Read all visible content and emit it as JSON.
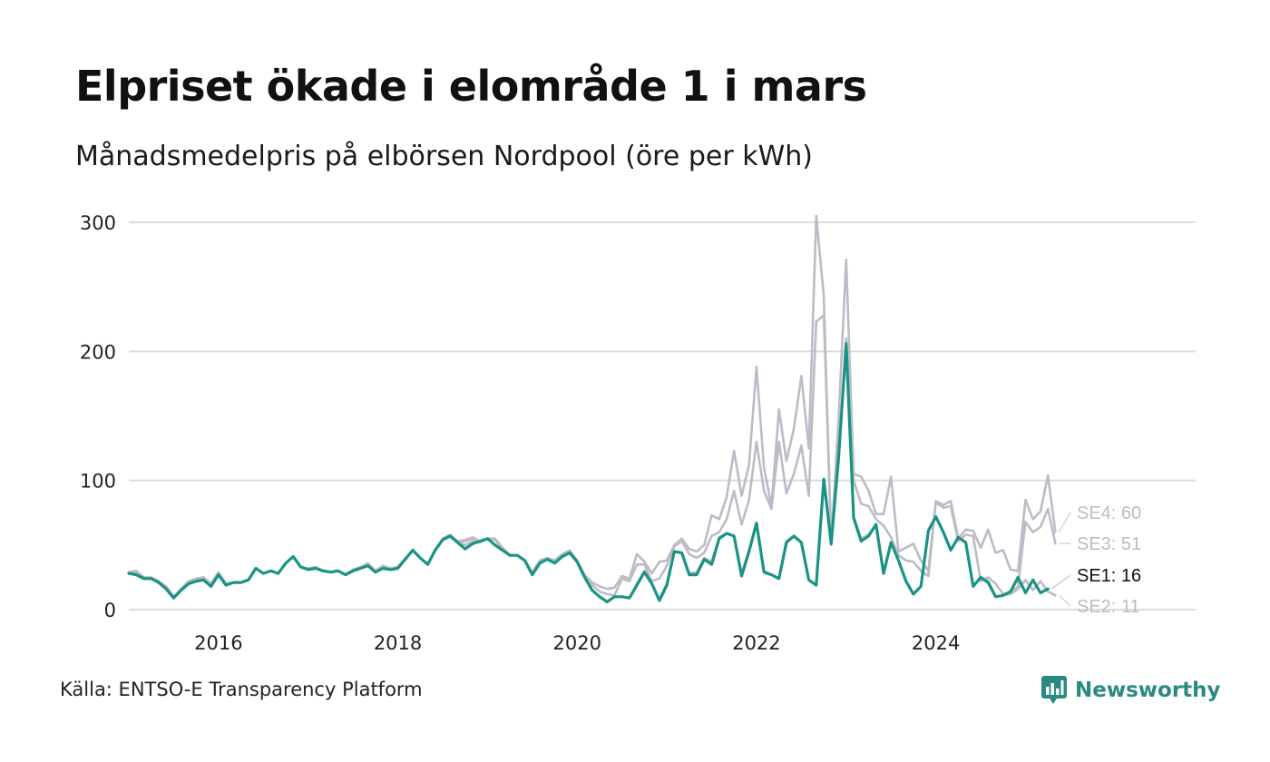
{
  "title": "Elpriset ökade i elområde 1 i mars",
  "subtitle": "Månadsmedelpris på elbörsen Nordpool (öre per kWh)",
  "source": "Källa: ENTSO-E Transparency Platform",
  "brand": "Newsworthy",
  "colors": {
    "highlight": "#1a9384",
    "muted": "#bcbbc7",
    "grid": "#dcdcdc",
    "brand": "#2a8a82"
  },
  "chart_data": {
    "type": "line",
    "title": "Elpriset ökade i elområde 1 i mars",
    "subtitle": "Månadsmedelpris på elbörsen Nordpool (öre per kWh)",
    "x_start": "2015-01",
    "x_ticks": [
      2016,
      2018,
      2020,
      2022,
      2024
    ],
    "y_ticks": [
      0,
      100,
      200,
      300
    ],
    "ylim": [
      0,
      300
    ],
    "grid": true,
    "series": [
      {
        "name": "SE4",
        "end_label": "SE4: 60",
        "color": "#bcbbc7",
        "values": [
          29,
          30,
          25,
          25,
          22,
          18,
          10,
          16,
          22,
          24,
          25,
          20,
          29,
          20,
          21,
          21,
          23,
          32,
          28,
          30,
          28,
          36,
          41,
          33,
          32,
          33,
          30,
          29,
          30,
          27,
          31,
          33,
          36,
          30,
          34,
          32,
          33,
          40,
          46,
          40,
          35,
          46,
          55,
          58,
          53,
          54,
          56,
          53,
          55,
          55,
          48,
          42,
          42,
          38,
          29,
          38,
          40,
          38,
          43,
          46,
          38,
          27,
          21,
          18,
          16,
          17,
          26,
          24,
          43,
          37,
          28,
          37,
          38,
          50,
          55,
          47,
          45,
          50,
          73,
          70,
          87,
          123,
          88,
          112,
          188,
          110,
          80,
          155,
          115,
          140,
          181,
          125,
          305,
          243,
          50,
          150,
          271,
          105,
          103,
          92,
          74,
          74,
          103,
          45,
          48,
          51,
          38,
          30,
          84,
          81,
          84,
          55,
          62,
          61,
          48,
          62,
          44,
          46,
          31,
          30,
          85,
          70,
          76,
          104,
          60
        ]
      },
      {
        "name": "SE3",
        "end_label": "SE3: 51",
        "color": "#bcbbc7",
        "values": [
          29,
          29,
          24,
          24,
          21,
          17,
          9,
          15,
          21,
          23,
          24,
          19,
          27,
          19,
          21,
          21,
          23,
          32,
          28,
          30,
          28,
          36,
          41,
          33,
          31,
          32,
          30,
          29,
          30,
          27,
          30,
          32,
          34,
          29,
          33,
          31,
          32,
          39,
          46,
          40,
          35,
          46,
          54,
          57,
          52,
          53,
          55,
          52,
          55,
          54,
          47,
          42,
          42,
          38,
          27,
          37,
          40,
          37,
          42,
          45,
          37,
          26,
          19,
          14,
          12,
          11,
          24,
          22,
          35,
          35,
          22,
          24,
          34,
          49,
          53,
          43,
          40,
          44,
          57,
          60,
          70,
          92,
          66,
          85,
          130,
          92,
          78,
          130,
          90,
          105,
          127,
          88,
          223,
          228,
          55,
          115,
          210,
          100,
          82,
          80,
          70,
          65,
          56,
          42,
          38,
          37,
          30,
          26,
          83,
          79,
          80,
          53,
          58,
          57,
          22,
          25,
          20,
          12,
          13,
          18,
          68,
          60,
          64,
          78,
          51
        ]
      },
      {
        "name": "SE2",
        "end_label": "SE2: 11",
        "color": "#bcbbc7",
        "values": [
          28,
          27,
          24,
          24,
          21,
          16,
          9,
          15,
          20,
          22,
          23,
          18,
          27,
          19,
          21,
          21,
          23,
          32,
          28,
          30,
          28,
          36,
          41,
          33,
          31,
          32,
          30,
          29,
          30,
          27,
          30,
          32,
          34,
          29,
          32,
          31,
          32,
          39,
          46,
          40,
          35,
          46,
          54,
          57,
          52,
          50,
          53,
          52,
          55,
          50,
          46,
          42,
          42,
          38,
          27,
          36,
          39,
          36,
          41,
          44,
          37,
          25,
          15,
          10,
          6,
          10,
          10,
          9,
          20,
          30,
          20,
          8,
          20,
          45,
          44,
          28,
          29,
          40,
          37,
          56,
          59,
          57,
          28,
          46,
          67,
          30,
          27,
          24,
          53,
          57,
          52,
          23,
          19,
          100,
          50,
          120,
          205,
          72,
          55,
          58,
          66,
          28,
          52,
          38,
          22,
          12,
          18,
          62,
          72,
          60,
          46,
          56,
          52,
          18,
          25,
          22,
          10,
          11,
          12,
          16,
          23,
          15,
          22,
          14,
          11
        ]
      },
      {
        "name": "SE1",
        "end_label": "SE1: 16",
        "color": "#1a9384",
        "highlight": true,
        "values": [
          28,
          27,
          24,
          24,
          21,
          16,
          9,
          15,
          20,
          22,
          23,
          18,
          27,
          19,
          21,
          21,
          23,
          32,
          28,
          30,
          28,
          36,
          41,
          33,
          31,
          32,
          30,
          29,
          30,
          27,
          30,
          32,
          34,
          29,
          32,
          31,
          32,
          39,
          46,
          40,
          35,
          46,
          54,
          57,
          52,
          47,
          51,
          53,
          55,
          50,
          46,
          42,
          42,
          38,
          27,
          36,
          39,
          36,
          41,
          44,
          37,
          25,
          15,
          10,
          6,
          10,
          10,
          9,
          19,
          29,
          20,
          7,
          19,
          45,
          44,
          27,
          27,
          39,
          35,
          55,
          59,
          57,
          26,
          45,
          67,
          29,
          27,
          24,
          52,
          57,
          52,
          23,
          19,
          101,
          51,
          120,
          206,
          71,
          53,
          57,
          66,
          28,
          52,
          38,
          22,
          12,
          18,
          61,
          72,
          60,
          46,
          56,
          52,
          18,
          25,
          21,
          10,
          11,
          14,
          25,
          13,
          23,
          13,
          16
        ]
      }
    ]
  }
}
